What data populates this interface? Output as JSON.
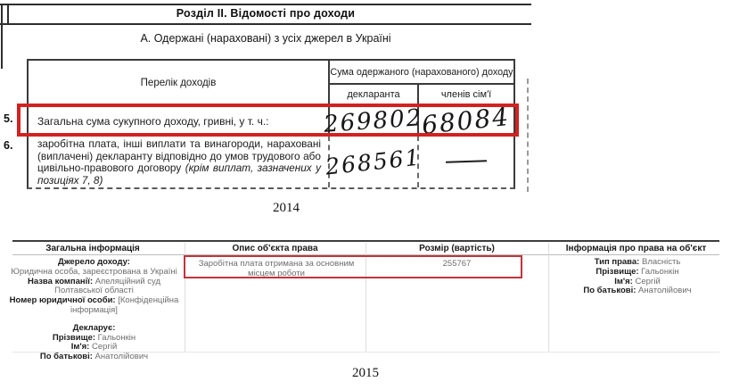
{
  "colors": {
    "highlight_red_top": "#d32121",
    "highlight_red_bottom": "#c2333c",
    "value_gray": "#6e6e6e"
  },
  "top_document": {
    "section_title": "Розділ II. Відомості про доходи",
    "subsection_title": "А. Одержані (нараховані) з усіх джерел в Україні",
    "table": {
      "col_list": "Перелік доходів",
      "col_sum": "Сума одержаного (нарахованого) доходу",
      "col_declarant": "декларанта",
      "col_family": "членів сім'ї",
      "row5": {
        "num": "5.",
        "label": "Загальна сума сукупного доходу, гривні, у т. ч.:",
        "declarant": "269802",
        "family": "68084"
      },
      "row6": {
        "num": "6.",
        "label_main": "заробітна плата, інші виплати та винагороди, нараховані (виплачені) декларанту відповідно до умов трудового або цивільно-правового договору",
        "label_italic": "(крім виплат, зазначених у позиціях 7, 8)",
        "declarant": "268561"
      }
    },
    "caption": "2014"
  },
  "bottom_table": {
    "headers": [
      "Загальна інформація",
      "Опис об'єкта права",
      "Розмір (вартість)",
      "Інформація про права на об'єкт"
    ],
    "general_info": {
      "source_label": "Джерело доходу:",
      "source_value": "Юридична особа, зареєстрована в Україні",
      "company_label": "Назва компанії:",
      "company_value": "Апеляційний суд Полтавської області",
      "idnum_label": "Номер юридичної особи:",
      "idnum_value": "[Конфіденційна інформація]",
      "declares_label": "Декларує:",
      "surname_label": "Прізвище:",
      "surname_value": "Гальонкін",
      "name_label": "Ім'я:",
      "name_value": "Сергій",
      "patronymic_label": "По батькові:",
      "patronymic_value": "Анатолійович"
    },
    "description_value": "Заробітна плата отримана за основним місцем роботи",
    "amount_value": "255767",
    "rights_info": {
      "type_label": "Тип права:",
      "type_value": "Власність",
      "surname_label": "Прізвище:",
      "surname_value": "Гальонкін",
      "name_label": "Ім'я:",
      "name_value": "Сергій",
      "patronymic_label": "По батькові:",
      "patronymic_value": "Анатолійович"
    },
    "caption": "2015"
  }
}
